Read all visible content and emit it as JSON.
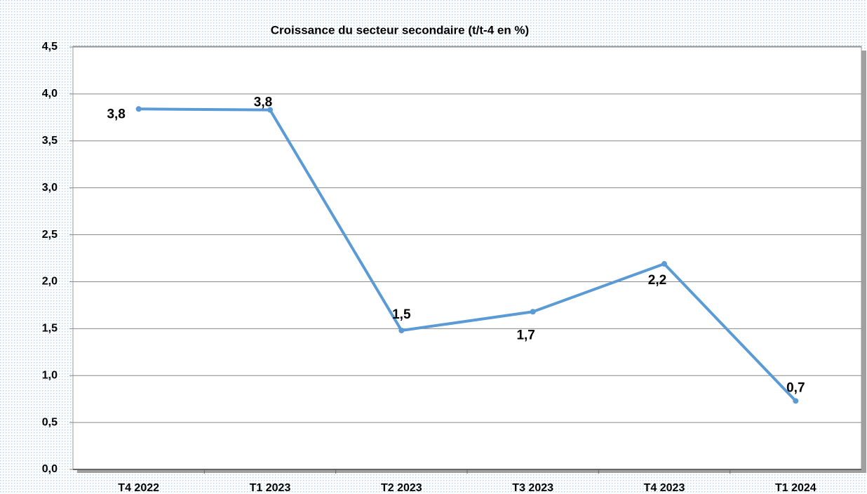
{
  "chart_data": {
    "type": "line",
    "title": "Croissance du secteur secondaire (t/t-4 en %)",
    "categories": [
      "T4  2022",
      "T1  2023",
      "T2  2023",
      "T3  2023",
      "T4  2023",
      "T1  2024"
    ],
    "series": [
      {
        "name": "Croissance du secteur secondaire",
        "color": "#5b9bd5",
        "values": [
          3.84,
          3.83,
          1.48,
          1.68,
          2.19,
          0.73
        ],
        "value_labels": [
          "3,8",
          "3,8",
          "1,5",
          "1,7",
          "2,2",
          "0,7"
        ]
      }
    ],
    "ylim": [
      0,
      4.5
    ],
    "yticks": [
      {
        "value": 0,
        "label": "0,0"
      },
      {
        "value": 0.5,
        "label": "0,5"
      },
      {
        "value": 1,
        "label": "1,0"
      },
      {
        "value": 1.5,
        "label": "1,5"
      },
      {
        "value": 2,
        "label": "2,0"
      },
      {
        "value": 2.5,
        "label": "2,5"
      },
      {
        "value": 3,
        "label": "3,0"
      },
      {
        "value": 3.5,
        "label": "3,5"
      },
      {
        "value": 4,
        "label": "4,0"
      },
      {
        "value": 4.5,
        "label": "4,5"
      }
    ],
    "grid": true
  }
}
